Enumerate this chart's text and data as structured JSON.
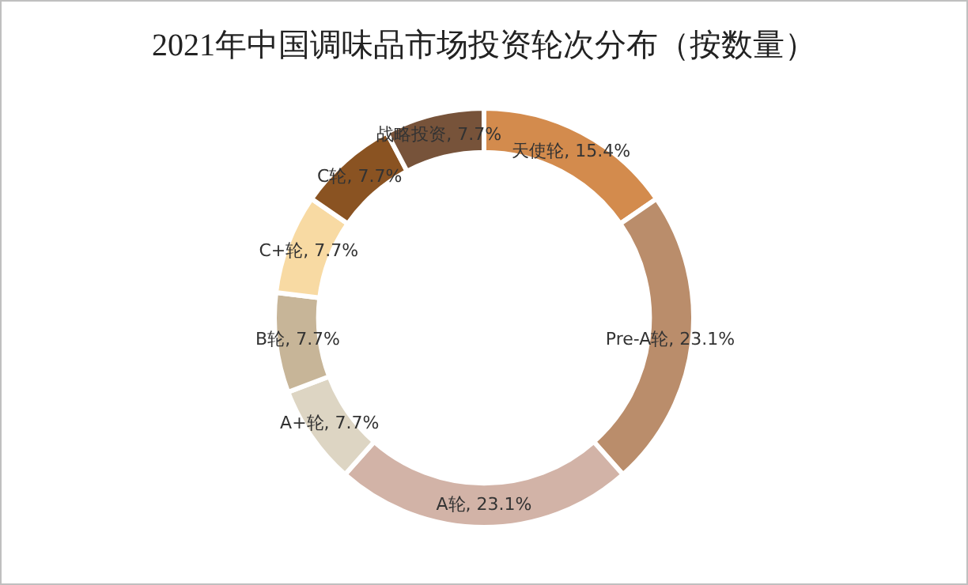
{
  "chart_data": {
    "type": "donut",
    "title": "2021年中国调味品市场投资轮次分布（按数量）",
    "categories": [
      "天使轮",
      "Pre-A轮",
      "A轮",
      "A+轮",
      "B轮",
      "C+轮",
      "C轮",
      "战略投资"
    ],
    "values": [
      15.4,
      23.1,
      23.1,
      7.7,
      7.7,
      7.7,
      7.7,
      7.7
    ],
    "value_labels": [
      "15.4%",
      "23.1%",
      "23.1%",
      "7.7%",
      "7.7%",
      "7.7%",
      "7.7%",
      "7.7%"
    ],
    "colors": [
      "#d38b4d",
      "#ba8d6b",
      "#d2b3a7",
      "#ddd5c3",
      "#c7b598",
      "#f8daa3",
      "#8a5322",
      "#77533a"
    ],
    "legend": false
  }
}
